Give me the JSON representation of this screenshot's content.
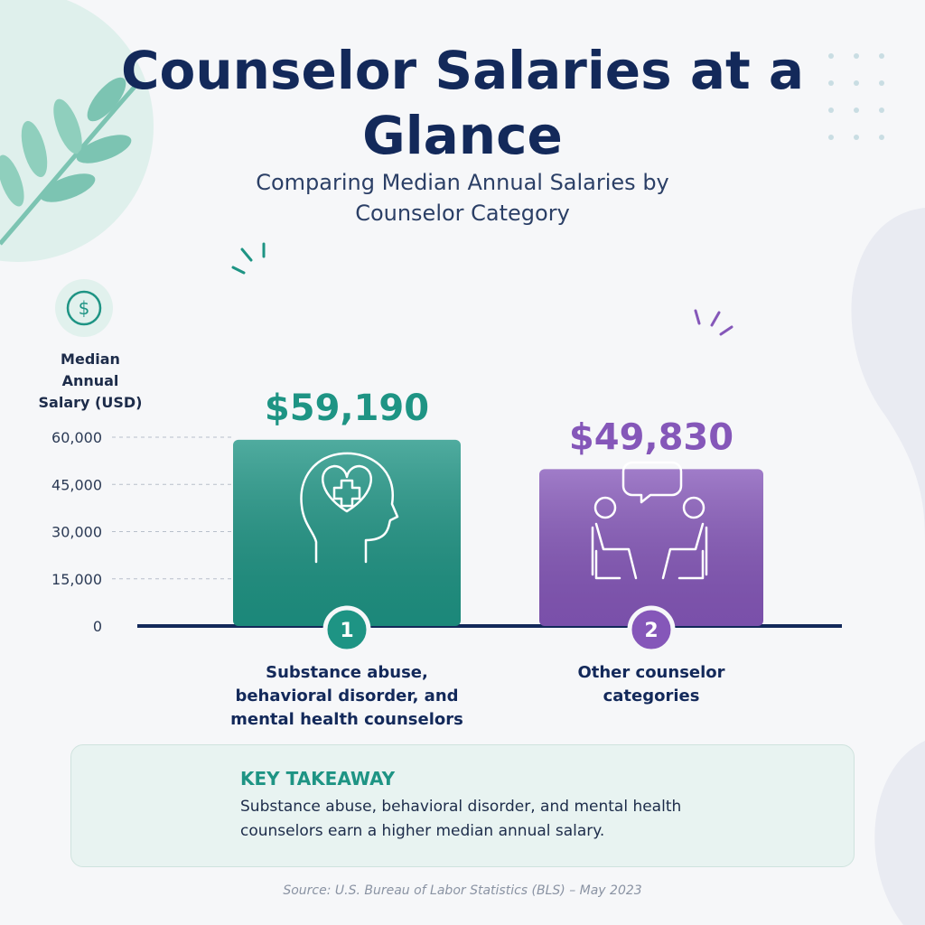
{
  "chart_data": {
    "type": "bar",
    "title": "Counselor Salaries at a Glance",
    "subtitle": "Comparing Median Annual Salaries by Counselor Category",
    "y_label": "Median Annual Salary (USD)",
    "categories": [
      "Substance abuse, behavioral disorder, and mental health counselors",
      "Other counselor categories"
    ],
    "category_numbers": [
      "1",
      "2"
    ],
    "values": [
      59190,
      49830
    ],
    "value_labels": [
      "$59,190",
      "$49,830"
    ],
    "colors": [
      "#1e9484",
      "#8557b9"
    ],
    "ylim": [
      0,
      60000
    ],
    "yticks": [
      0,
      {
        "value": 15000,
        "label": "15,000"
      },
      {
        "value": 30000,
        "label": "30,000"
      },
      {
        "value": 45000,
        "label": "45,000"
      },
      {
        "value": 60000,
        "label": "60,000"
      }
    ],
    "grid": true,
    "takeaway_title": "KEY TAKEAWAY",
    "takeaway_text": "Substance abuse, behavioral disorder, and mental health counselors earn a higher median annual salary.",
    "source": "Source: U.S. Bureau of Labor Statistics (BLS) – May 2023"
  }
}
